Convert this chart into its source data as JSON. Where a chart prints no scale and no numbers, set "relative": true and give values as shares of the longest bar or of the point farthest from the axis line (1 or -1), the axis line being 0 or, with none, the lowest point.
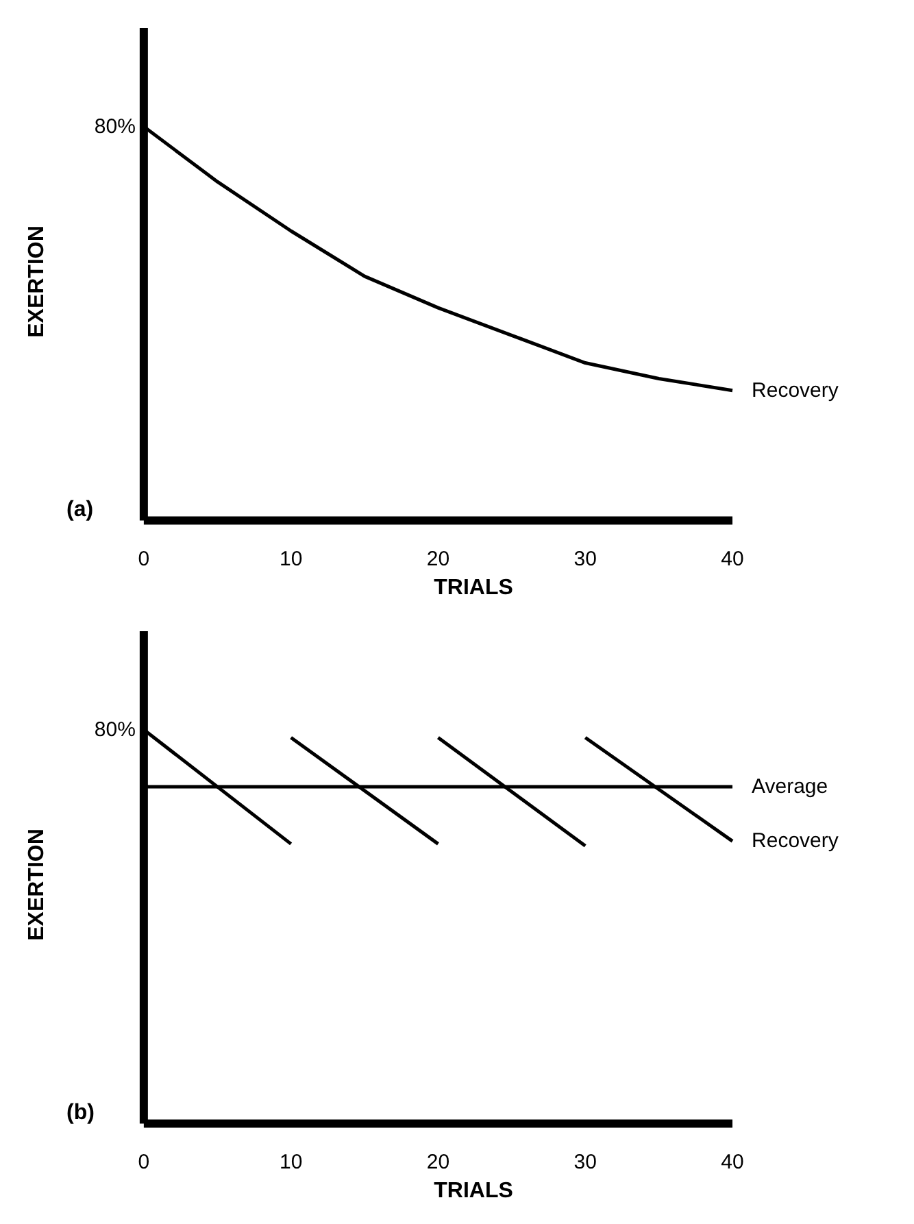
{
  "chart_data": [
    {
      "type": "line",
      "relative": true,
      "xlabel": "TRIALS",
      "ylabel": "EXERTION",
      "x": [
        0,
        5,
        10,
        15,
        20,
        25,
        30,
        35,
        40
      ],
      "xlim": [
        0,
        40
      ],
      "xticks": [
        0,
        10,
        20,
        30,
        40
      ],
      "tick_labels": "x",
      "grid": false,
      "legend": false,
      "series": [
        {
          "name": "Recovery",
          "color": "#000000",
          "values": [
            1,
            0.86,
            0.735,
            0.62,
            0.54,
            0.47,
            0.4,
            0.36,
            0.33
          ]
        }
      ],
      "annotations": [
        {
          "text": "80%",
          "x": 0,
          "y": 1
        },
        "(a)"
      ]
    },
    {
      "type": "line",
      "relative": true,
      "xlabel": "TRIALS",
      "ylabel": "EXERTION",
      "xlim": [
        0,
        40
      ],
      "xticks": [
        0,
        10,
        20,
        30,
        40
      ],
      "tick_labels": "x",
      "grid": false,
      "legend": false,
      "series": [
        {
          "name": "Average",
          "color": "#000000",
          "x": [
            0,
            40
          ],
          "values": [
            0.855,
            0.855
          ]
        },
        {
          "color": "#000000",
          "x": [
            0,
            10
          ],
          "values": [
            1,
            0.71
          ]
        },
        {
          "color": "#000000",
          "x": [
            10,
            20
          ],
          "values": [
            0.98,
            0.71
          ]
        },
        {
          "color": "#000000",
          "x": [
            20,
            30
          ],
          "values": [
            0.98,
            0.705
          ]
        },
        {
          "name": "Recovery",
          "color": "#000000",
          "x": [
            30,
            40
          ],
          "values": [
            0.98,
            0.717
          ]
        }
      ],
      "annotations": [
        {
          "text": "80%",
          "x": 0,
          "y": 1
        },
        "(b)"
      ]
    }
  ]
}
